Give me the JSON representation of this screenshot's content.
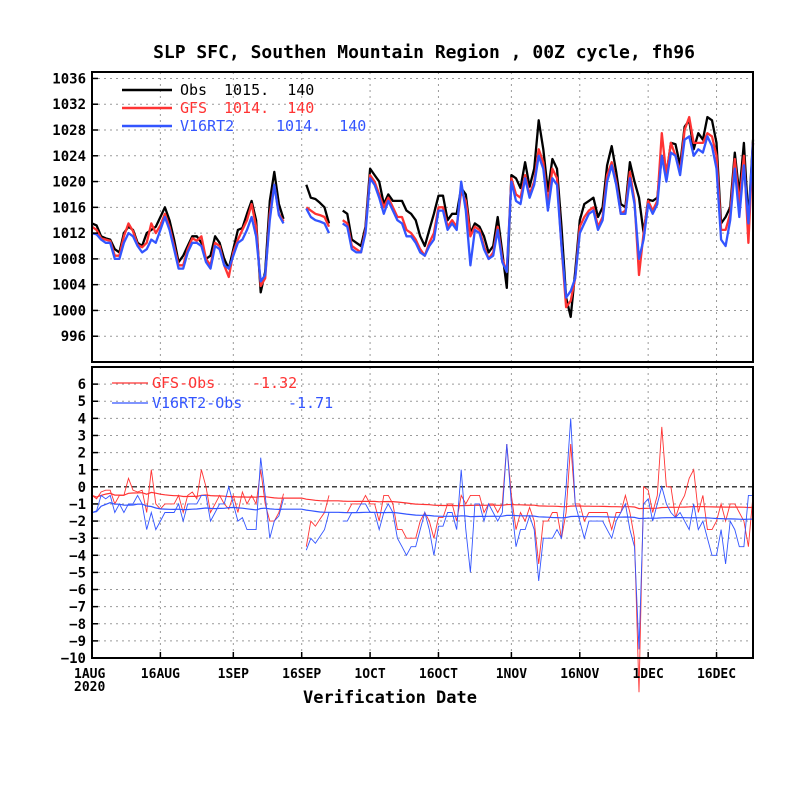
{
  "chart_data": [
    {
      "type": "line",
      "panel": "top",
      "title": "SLP SFC, Southen Mountain Region , 00Z cycle, fh96",
      "ylim": [
        992,
        1037
      ],
      "yticks": [
        996,
        1000,
        1004,
        1008,
        1012,
        1016,
        1020,
        1024,
        1028,
        1032,
        1036
      ],
      "grid": true,
      "legend_position": "top-left",
      "series": [
        {
          "name": "Obs",
          "legend_values": "1015.  140",
          "color": "#000000",
          "values": [
            1013.5,
            1013.2,
            1011.5,
            1011.2,
            1011,
            1009.5,
            1009,
            1012,
            1013,
            1012.5,
            1010.5,
            1010,
            1012,
            1012.5,
            1013,
            1014.5,
            1016,
            1014,
            1011,
            1007.5,
            1008.5,
            1010,
            1011.5,
            1011.5,
            1010.5,
            1008,
            1008.5,
            1011.5,
            1010.5,
            1008,
            1006.5,
            1009.5,
            1012.5,
            1012.8,
            1015,
            1017,
            1014,
            1002.8,
            1006,
            1017,
            1021.5,
            1016.5,
            1014.2,
            null,
            null,
            null,
            null,
            1019.5,
            1017.5,
            1017.3,
            1016.7,
            1016,
            1013.5,
            null,
            null,
            1015.5,
            1015,
            1011,
            1010.5,
            1010,
            1013,
            1022,
            1021,
            1020,
            1016.5,
            1018,
            1017,
            1017,
            1017,
            1015.5,
            1015,
            1014,
            1011.5,
            1010,
            1012.5,
            1015,
            1017.8,
            1017.8,
            1014,
            1015,
            1015,
            1019,
            1018,
            1012,
            1013.5,
            1013,
            1011.5,
            1009,
            1010,
            1014.5,
            1009,
            1003.5,
            1021,
            1020.5,
            1019,
            1023,
            1019.2,
            1022,
            1029.5,
            1025,
            1018.5,
            1023.5,
            1022,
            1013,
            1002,
            999,
            1006,
            1014,
            1016.5,
            1017,
            1017.5,
            1014.5,
            1016,
            1022.5,
            1025.5,
            1021.5,
            1016.5,
            1016,
            1023,
            1020,
            1017.5,
            1012,
            1017.2,
            1017,
            1017.5,
            1024,
            1021,
            1026,
            1025.8,
            1022.5,
            1028.5,
            1029.5,
            1025,
            1027.5,
            1026.5,
            1030,
            1029.5,
            1026,
            1013.5,
            1014.5,
            1016,
            1024.5,
            1018,
            1026,
            1014,
            1026.5
          ]
        },
        {
          "name": "GFS",
          "legend_values": "1014.  140",
          "color": "#ff3333",
          "values": [
            1013,
            1012.5,
            1011.2,
            1011,
            1010.8,
            1008.5,
            1008.5,
            1011.5,
            1013.5,
            1012.3,
            1010.2,
            1009.8,
            1010.5,
            1013.5,
            1012,
            1013.2,
            1015,
            1013,
            1010,
            1007,
            1007,
            1009.5,
            1011.2,
            1010.8,
            1011.5,
            1008,
            1007,
            1010.5,
            1010,
            1007,
            1005.2,
            1009,
            1011,
            1012.5,
            1014,
            1016.5,
            1013,
            1003.8,
            1005,
            1015,
            1019.5,
            1015,
            1013.8,
            null,
            null,
            null,
            null,
            1016,
            1015.5,
            1015,
            1014.8,
            1014.5,
            1013,
            null,
            null,
            1014,
            1013.5,
            1010,
            1009.5,
            1009,
            1012.5,
            1021,
            1020,
            1018,
            1016,
            1017.5,
            1016,
            1014.5,
            1014.5,
            1012.5,
            1012,
            1011,
            1009.5,
            1008.5,
            1010.5,
            1012,
            1016,
            1016,
            1013,
            1014,
            1013,
            1018.5,
            1017,
            1011.5,
            1013,
            1012.5,
            1010,
            1008,
            1009,
            1013,
            1008,
            1006,
            1020.5,
            1018,
            1017.5,
            1021,
            1018,
            1020,
            1025,
            1023,
            1016.5,
            1022,
            1020.5,
            1010,
            1000.5,
            1001.5,
            1005,
            1013,
            1014.5,
            1015.5,
            1016,
            1013,
            1014.5,
            1021,
            1023,
            1020,
            1015,
            1015.5,
            1021.5,
            1017,
            1005.5,
            1012,
            1017,
            1015.5,
            1017,
            1027.5,
            1021,
            1026,
            1024,
            1021.5,
            1028,
            1030,
            1026,
            1026,
            1026,
            1027.5,
            1027,
            1024,
            1012.5,
            1012.5,
            1015,
            1023.5,
            1016.5,
            1024,
            1010.5,
            1026
          ]
        },
        {
          "name": "V16RT2",
          "legend_values": "1014.  140",
          "color": "#3355ff",
          "values": [
            1012,
            1011.8,
            1011,
            1010.5,
            1010.5,
            1008,
            1008,
            1010.5,
            1012,
            1011.5,
            1010,
            1009,
            1009.5,
            1011,
            1010.5,
            1012.5,
            1014.5,
            1012.5,
            1009.5,
            1006.5,
            1006.5,
            1009,
            1010.5,
            1010.5,
            1010,
            1007.5,
            1006.5,
            1010,
            1009.5,
            1007,
            1006.5,
            1008.5,
            1010.5,
            1011,
            1012.5,
            1014.5,
            1011.5,
            1004.5,
            1005.5,
            1014,
            1019.5,
            1014.8,
            1013.5,
            null,
            null,
            null,
            null,
            1015.8,
            1014.5,
            1014,
            1013.8,
            1013.5,
            1012,
            null,
            null,
            1013.5,
            1013,
            1009.5,
            1009,
            1009,
            1012,
            1020.5,
            1019.5,
            1017.5,
            1015,
            1017,
            1015.5,
            1014,
            1013.5,
            1011.5,
            1011.5,
            1010.5,
            1009,
            1008.5,
            1010,
            1011,
            1015.5,
            1015.5,
            1012.5,
            1013.5,
            1012.5,
            1020,
            1015.5,
            1007,
            1012.5,
            1012,
            1009.5,
            1008,
            1008.5,
            1012.5,
            1007.5,
            1006,
            1020,
            1017,
            1016.5,
            1020.5,
            1017.5,
            1019.5,
            1024,
            1022,
            1015.5,
            1020.5,
            1019.5,
            1010,
            1002,
            1003,
            1005,
            1012,
            1013.5,
            1015,
            1015.5,
            1012.5,
            1014,
            1020,
            1022.5,
            1019.5,
            1015,
            1015,
            1020.5,
            1016.5,
            1008,
            1011,
            1016.5,
            1015,
            1016.5,
            1024,
            1020,
            1024.5,
            1024,
            1021,
            1026.5,
            1027,
            1024,
            1025,
            1024.5,
            1027,
            1025.5,
            1022,
            1011,
            1010,
            1014,
            1022,
            1014.5,
            1022.5,
            1013.5,
            1026
          ]
        }
      ]
    },
    {
      "type": "line",
      "panel": "bottom",
      "xlabel": "Verification Date",
      "ylim": [
        -10,
        7
      ],
      "yticks": [
        -10,
        -9,
        -8,
        -7,
        -6,
        -5,
        -4,
        -3,
        -2,
        -1,
        0,
        1,
        2,
        3,
        4,
        5,
        6
      ],
      "x_tick_labels": [
        "1AUG",
        "16AUG",
        "1SEP",
        "16SEP",
        "1OCT",
        "16OCT",
        "1NOV",
        "16NOV",
        "1DEC",
        "16DEC"
      ],
      "x_start_year": "2020",
      "grid": true,
      "legend_position": "top-left",
      "series": [
        {
          "name": "GFS-Obs",
          "legend_value": "-1.32",
          "color": "#ff3333",
          "kind": "daily difference and running mean"
        },
        {
          "name": "V16RT2-Obs",
          "legend_value": "-1.71",
          "color": "#3355ff",
          "kind": "daily difference and running mean"
        }
      ]
    }
  ]
}
